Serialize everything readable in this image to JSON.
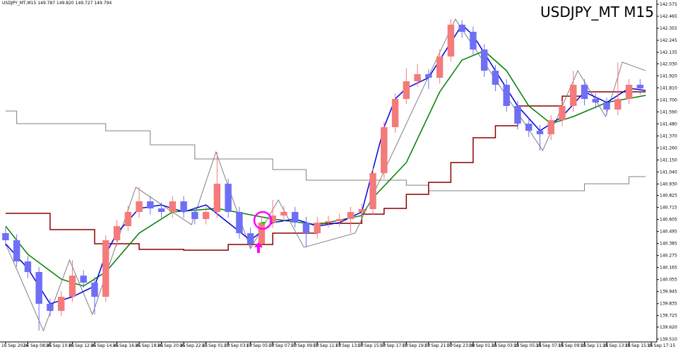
{
  "chart_data": {
    "type": "candlestick",
    "title": "USDJPY_MT M15",
    "info": "USDJPY_MT,M15  149.787 149.820 149.727 149.794",
    "bull_color": "#f47b7b",
    "bear_color": "#6f6ff5",
    "xlim": [
      -0.5,
      58.5
    ],
    "xticks": [
      {
        "value": 0,
        "label": "16 Sep 2024"
      },
      {
        "value": 2,
        "label": "16 Sep 08:45"
      },
      {
        "value": 4,
        "label": "16 Sep 10:45"
      },
      {
        "value": 6,
        "label": "16 Sep 12:45"
      },
      {
        "value": 8,
        "label": "16 Sep 14:45"
      },
      {
        "value": 10,
        "label": "16 Sep 16:45"
      },
      {
        "value": 12,
        "label": "16 Sep 18:45"
      },
      {
        "value": 14,
        "label": "16 Sep 20:45"
      },
      {
        "value": 16,
        "label": "16 Sep 22:45"
      },
      {
        "value": 18,
        "label": "17 Sep 01:00"
      },
      {
        "value": 20,
        "label": "17 Sep 03:00"
      },
      {
        "value": 22,
        "label": "17 Sep 05:00"
      },
      {
        "value": 24,
        "label": "17 Sep 07:00"
      },
      {
        "value": 26,
        "label": "17 Sep 09:00"
      },
      {
        "value": 28,
        "label": "17 Sep 11:00"
      },
      {
        "value": 30,
        "label": "17 Sep 13:00"
      },
      {
        "value": 32,
        "label": "17 Sep 15:00"
      },
      {
        "value": 34,
        "label": "17 Sep 17:00"
      },
      {
        "value": 36,
        "label": "17 Sep 19:00"
      },
      {
        "value": 38,
        "label": "17 Sep 21:00"
      },
      {
        "value": 40,
        "label": "17 Sep 23:00"
      },
      {
        "value": 42,
        "label": "18 Sep 01:15"
      },
      {
        "value": 44,
        "label": "18 Sep 03:15"
      },
      {
        "value": 46,
        "label": "18 Sep 05:15"
      },
      {
        "value": 48,
        "label": "18 Sep 07:15"
      },
      {
        "value": 50,
        "label": "18 Sep 09:15"
      },
      {
        "value": 52,
        "label": "18 Sep 11:15"
      },
      {
        "value": 54,
        "label": "18 Sep 13:15"
      },
      {
        "value": 56,
        "label": "18 Sep 15:15"
      },
      {
        "value": 58,
        "label": "18 Sep 17:15"
      }
    ],
    "ylim": [
      139.484,
      142.614
    ],
    "yticks": [
      142.575,
      142.465,
      142.355,
      142.245,
      142.135,
      {
        "value": 142.03,
        "label": "142.030"
      },
      {
        "value": 141.92,
        "label": "141.920"
      },
      {
        "value": 141.81,
        "label": "141.810"
      },
      {
        "value": 141.7,
        "label": "141.700"
      },
      {
        "value": 141.59,
        "label": "141.590"
      },
      {
        "value": 141.48,
        "label": "141.480"
      },
      {
        "value": 141.37,
        "label": "141.370"
      },
      {
        "value": 141.26,
        "label": "141.260"
      },
      {
        "value": 141.15,
        "label": "141.150"
      },
      {
        "value": 141.04,
        "label": "141.040"
      },
      {
        "value": 140.93,
        "label": "140.930"
      },
      140.825,
      140.715,
      140.605,
      140.495,
      140.385,
      140.275,
      140.165,
      140.055,
      139.945,
      139.835,
      139.725,
      {
        "value": 139.62,
        "label": "139.620"
      },
      {
        "value": 139.51,
        "label": "139.510"
      }
    ],
    "open": [
      140.48,
      140.415,
      140.221,
      140.124,
      139.833,
      139.768,
      139.897,
      140.091,
      140.027,
      139.897,
      140.415,
      140.544,
      140.674,
      140.771,
      140.706,
      140.674,
      140.771,
      140.674,
      140.609,
      140.674,
      140.932,
      140.674,
      140.479,
      140.382,
      140.576,
      140.641,
      140.674,
      140.576,
      140.479,
      140.576,
      140.59,
      140.609,
      140.674,
      140.7,
      141.029,
      141.45,
      141.708,
      141.87,
      141.935,
      141.902,
      142.097,
      142.388,
      142.323,
      142.161,
      141.967,
      141.838,
      141.644,
      141.482,
      141.417,
      141.385,
      141.514,
      141.644,
      141.838,
      141.708,
      141.676,
      141.611,
      141.708,
      141.838
    ],
    "high": [
      140.53,
      140.47,
      140.27,
      140.17,
      139.88,
      139.95,
      140.234,
      140.14,
      140.08,
      140.46,
      140.6,
      140.73,
      140.9,
      140.82,
      140.76,
      140.82,
      140.82,
      140.72,
      140.72,
      141.223,
      140.98,
      140.72,
      140.53,
      140.63,
      140.784,
      140.73,
      140.72,
      140.63,
      140.63,
      140.64,
      140.66,
      140.72,
      140.75,
      141.08,
      141.5,
      141.76,
      141.99,
      142.03,
      141.98,
      142.16,
      142.439,
      142.43,
      142.37,
      142.21,
      142.02,
      141.89,
      141.69,
      141.53,
      141.47,
      141.56,
      141.69,
      141.967,
      141.89,
      141.76,
      141.72,
      142.045,
      141.89,
      141.89
    ],
    "low": [
      140.36,
      140.17,
      140.07,
      139.587,
      139.72,
      139.72,
      139.85,
      139.98,
      139.736,
      139.85,
      140.36,
      140.5,
      140.62,
      140.65,
      140.62,
      140.62,
      140.62,
      140.56,
      140.56,
      140.62,
      140.62,
      140.43,
      140.337,
      140.34,
      140.53,
      140.59,
      140.53,
      140.35,
      140.43,
      140.53,
      140.54,
      140.48,
      140.62,
      140.65,
      140.98,
      141.4,
      141.66,
      141.82,
      141.8,
      141.85,
      142.05,
      142.27,
      142.1,
      141.91,
      141.78,
      141.59,
      141.43,
      141.36,
      141.236,
      141.33,
      141.46,
      141.59,
      141.65,
      141.62,
      141.56,
      141.56,
      141.66,
      141.75
    ],
    "close": [
      140.415,
      140.221,
      140.124,
      139.833,
      139.768,
      139.897,
      140.091,
      140.027,
      139.897,
      140.415,
      140.544,
      140.674,
      140.771,
      140.706,
      140.674,
      140.771,
      140.674,
      140.609,
      140.674,
      140.932,
      140.674,
      140.479,
      140.382,
      140.576,
      140.641,
      140.674,
      140.576,
      140.479,
      140.576,
      140.59,
      140.609,
      140.674,
      140.7,
      141.029,
      141.45,
      141.708,
      141.87,
      141.935,
      141.902,
      142.097,
      142.388,
      142.323,
      142.161,
      141.967,
      141.838,
      141.644,
      141.482,
      141.417,
      141.385,
      141.514,
      141.644,
      141.838,
      141.708,
      141.676,
      141.611,
      141.708,
      141.838,
      141.805
    ],
    "lines": [
      {
        "color": "#808080",
        "style": "step",
        "width": 1,
        "x": [
          0,
          1,
          9,
          13,
          17,
          24,
          27,
          36,
          38,
          52,
          56,
          57.5
        ],
        "values": [
          141.598,
          141.482,
          141.417,
          141.288,
          141.159,
          141.062,
          140.965,
          140.919,
          140.868,
          140.932,
          140.997,
          140.997
        ]
      },
      {
        "color": "#8b0000",
        "style": "step",
        "width": 1.5,
        "x": [
          0,
          4,
          8,
          12,
          16,
          20,
          24,
          28,
          32,
          34,
          36,
          38,
          40,
          42,
          44,
          46,
          50,
          52,
          57.5
        ],
        "values": [
          140.661,
          140.512,
          140.383,
          140.331,
          140.324,
          140.376,
          140.48,
          140.57,
          140.654,
          140.706,
          140.835,
          140.945,
          141.126,
          141.353,
          141.463,
          141.644,
          141.734,
          141.773,
          141.773
        ]
      },
      {
        "color": "#008000",
        "style": "line",
        "width": 1.5,
        "x": [
          0,
          2,
          5,
          7,
          9,
          12,
          15,
          19,
          24,
          28,
          32,
          33,
          36,
          39,
          41,
          43,
          45,
          47,
          49,
          51,
          54,
          57.5
        ],
        "values": [
          140.544,
          140.286,
          140.059,
          139.995,
          140.124,
          140.48,
          140.674,
          140.706,
          140.609,
          140.557,
          140.641,
          140.803,
          141.126,
          141.773,
          142.064,
          142.148,
          141.967,
          141.644,
          141.482,
          141.547,
          141.676,
          141.741
        ]
      },
      {
        "color": "#808080",
        "style": "line",
        "width": 1,
        "x": [
          0,
          3.4,
          5.75,
          7.8,
          11.7,
          16.7,
          18.9,
          22,
          24.5,
          26.8,
          31.4,
          40.4,
          48.25,
          51.4,
          53.9,
          55.4,
          57.5
        ],
        "values": [
          140.383,
          139.587,
          140.234,
          139.736,
          140.9,
          140.557,
          141.223,
          140.337,
          140.784,
          140.35,
          140.48,
          142.439,
          141.236,
          141.967,
          141.547,
          142.045,
          141.967
        ]
      },
      {
        "color": "#0000e0",
        "style": "line",
        "width": 1.5,
        "x": [
          0,
          2,
          4,
          6,
          8,
          9,
          10,
          12,
          14,
          16,
          18,
          20,
          22,
          24,
          26,
          28,
          30,
          32,
          34,
          35,
          36,
          38,
          40,
          41,
          42,
          44,
          46,
          48,
          50,
          52,
          54,
          56,
          57.5
        ],
        "values": [
          140.383,
          140.156,
          139.833,
          139.897,
          139.995,
          140.286,
          140.48,
          140.706,
          140.738,
          140.674,
          140.738,
          140.576,
          140.415,
          140.576,
          140.609,
          140.544,
          140.576,
          140.674,
          141.45,
          141.708,
          141.806,
          141.903,
          142.226,
          142.388,
          142.291,
          141.967,
          141.644,
          141.417,
          141.547,
          141.773,
          141.676,
          141.806,
          141.786
        ]
      }
    ]
  }
}
